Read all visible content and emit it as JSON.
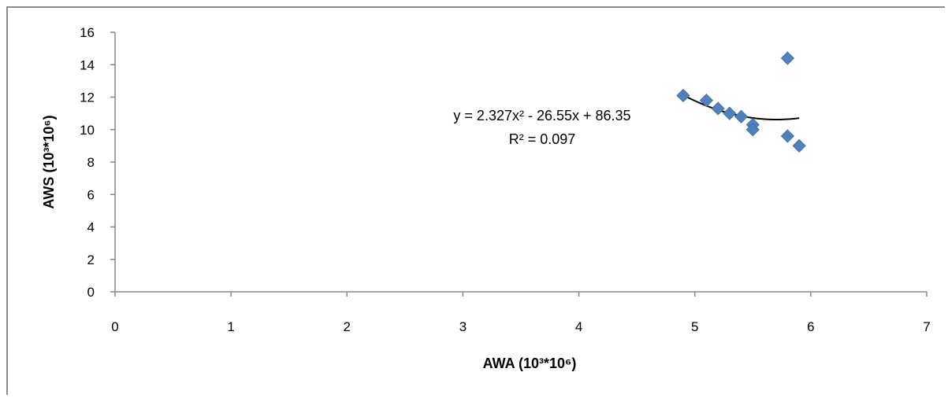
{
  "chart_data": {
    "type": "scatter",
    "xlabel": "AWA (10³*10⁶)",
    "ylabel": "AWS (10³*10⁶)",
    "xlim": [
      0,
      7
    ],
    "ylim": [
      0,
      16
    ],
    "x_ticks": [
      "0",
      "1",
      "2",
      "3",
      "4",
      "5",
      "6",
      "7"
    ],
    "y_ticks": [
      "0",
      "2",
      "4",
      "6",
      "8",
      "10",
      "12",
      "14",
      "16"
    ],
    "grid": false,
    "legend": "none",
    "marker": "diamond",
    "marker_color": "#4f81bd",
    "trendline_color": "#000000",
    "points": [
      {
        "x": 4.9,
        "y": 12.1
      },
      {
        "x": 5.1,
        "y": 11.8
      },
      {
        "x": 5.2,
        "y": 11.3
      },
      {
        "x": 5.3,
        "y": 11.0
      },
      {
        "x": 5.4,
        "y": 10.8
      },
      {
        "x": 5.5,
        "y": 10.3
      },
      {
        "x": 5.5,
        "y": 10.0
      },
      {
        "x": 5.8,
        "y": 14.4
      },
      {
        "x": 5.8,
        "y": 9.6
      },
      {
        "x": 5.9,
        "y": 9.0
      }
    ],
    "trendline": {
      "type": "polynomial",
      "coefficients": [
        2.327,
        -26.55,
        86.35
      ],
      "x_range": [
        4.9,
        5.9
      ],
      "equation": "y = 2.327x² - 26.55x + 86.35",
      "r_squared": "R² = 0.097"
    }
  }
}
